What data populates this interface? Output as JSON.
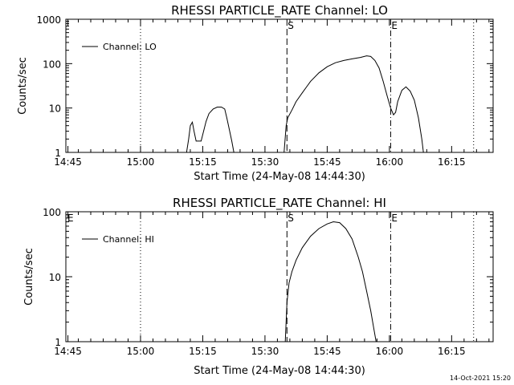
{
  "footer": {
    "timestamp": "14-Oct-2021 15:20"
  },
  "chart_data": [
    {
      "type": "line",
      "title": "RHESSI PARTICLE_RATE Channel: LO",
      "xlabel": "Start Time (24-May-08 14:44:30)",
      "ylabel": "Counts/sec",
      "yscale": "log",
      "ylim": [
        1,
        1000
      ],
      "xlim_minutes": [
        0,
        103
      ],
      "x_ticks": [
        "14:45",
        "15:00",
        "15:15",
        "15:30",
        "15:45",
        "16:00",
        "16:15"
      ],
      "y_ticks": [
        "1",
        "10",
        "100",
        "1000"
      ],
      "legend": {
        "label": "Channel: LO",
        "position": "top-left"
      },
      "markers": [
        {
          "label": "",
          "x": 18,
          "style": "dotted"
        },
        {
          "label": "S",
          "x": 53.3,
          "style": "dashed"
        },
        {
          "label": "E",
          "x": 78.3,
          "style": "dashdot"
        },
        {
          "label": "",
          "x": 98.3,
          "style": "dotted"
        }
      ],
      "series": [
        {
          "name": "Channel: LO",
          "segments": [
            [
              [
                29.1,
                1
              ],
              [
                29.6,
                2
              ],
              [
                30.0,
                4
              ],
              [
                30.5,
                4.8
              ],
              [
                30.9,
                3
              ],
              [
                31.4,
                1.8
              ],
              [
                32.0,
                1.8
              ],
              [
                32.6,
                1.8
              ],
              [
                33.2,
                3
              ],
              [
                33.8,
                5
              ],
              [
                34.5,
                7.5
              ],
              [
                35.5,
                9.5
              ],
              [
                36.5,
                10.5
              ],
              [
                37.5,
                10.5
              ],
              [
                38.3,
                9.5
              ],
              [
                38.8,
                6
              ],
              [
                39.5,
                3
              ],
              [
                40.0,
                1.8
              ],
              [
                40.5,
                1
              ]
            ],
            [
              [
                52.6,
                1
              ],
              [
                53.1,
                4
              ],
              [
                53.5,
                6
              ],
              [
                54.5,
                9
              ],
              [
                55.5,
                14
              ],
              [
                57.0,
                22
              ],
              [
                59.0,
                40
              ],
              [
                61.0,
                62
              ],
              [
                63.0,
                85
              ],
              [
                65.0,
                105
              ],
              [
                67.0,
                118
              ],
              [
                69.0,
                128
              ],
              [
                71.0,
                138
              ],
              [
                72.5,
                150
              ],
              [
                73.5,
                145
              ],
              [
                74.5,
                118
              ],
              [
                75.5,
                80
              ],
              [
                76.5,
                40
              ],
              [
                77.5,
                18
              ],
              [
                78.3,
                10
              ],
              [
                79.0,
                7
              ],
              [
                79.5,
                8
              ],
              [
                80.0,
                14
              ],
              [
                81.0,
                25
              ],
              [
                82.0,
                30
              ],
              [
                83.0,
                24
              ],
              [
                84.0,
                15
              ],
              [
                85.0,
                6
              ],
              [
                85.8,
                2
              ],
              [
                86.2,
                1
              ]
            ]
          ]
        }
      ]
    },
    {
      "type": "line",
      "title": "RHESSI PARTICLE_RATE Channel: HI",
      "xlabel": "Start Time (24-May-08 14:44:30)",
      "ylabel": "Counts/sec",
      "yscale": "log",
      "ylim": [
        1,
        100
      ],
      "xlim_minutes": [
        0,
        103
      ],
      "x_ticks": [
        "14:45",
        "15:00",
        "15:15",
        "15:30",
        "15:45",
        "16:00",
        "16:15"
      ],
      "y_ticks": [
        "1",
        "10",
        "100"
      ],
      "legend": {
        "label": "Channel: HI",
        "position": "top-left"
      },
      "markers": [
        {
          "label": "E",
          "x": 0,
          "style": "none"
        },
        {
          "label": "",
          "x": 18,
          "style": "dotted"
        },
        {
          "label": "S",
          "x": 53.3,
          "style": "dashed"
        },
        {
          "label": "E",
          "x": 78.3,
          "style": "dashdot"
        },
        {
          "label": "",
          "x": 98.3,
          "style": "dotted"
        }
      ],
      "series": [
        {
          "name": "Channel: HI",
          "segments": [
            [
              [
                52.9,
                1
              ],
              [
                53.3,
                4
              ],
              [
                53.8,
                8
              ],
              [
                54.5,
                12
              ],
              [
                55.5,
                18
              ],
              [
                57.0,
                28
              ],
              [
                59.0,
                42
              ],
              [
                61.0,
                55
              ],
              [
                63.0,
                65
              ],
              [
                64.5,
                70
              ],
              [
                66.0,
                68
              ],
              [
                67.5,
                55
              ],
              [
                69.0,
                38
              ],
              [
                70.5,
                20
              ],
              [
                71.5,
                12
              ],
              [
                72.5,
                6
              ],
              [
                73.5,
                3
              ],
              [
                74.3,
                1.5
              ],
              [
                74.8,
                1
              ]
            ]
          ]
        }
      ]
    }
  ]
}
